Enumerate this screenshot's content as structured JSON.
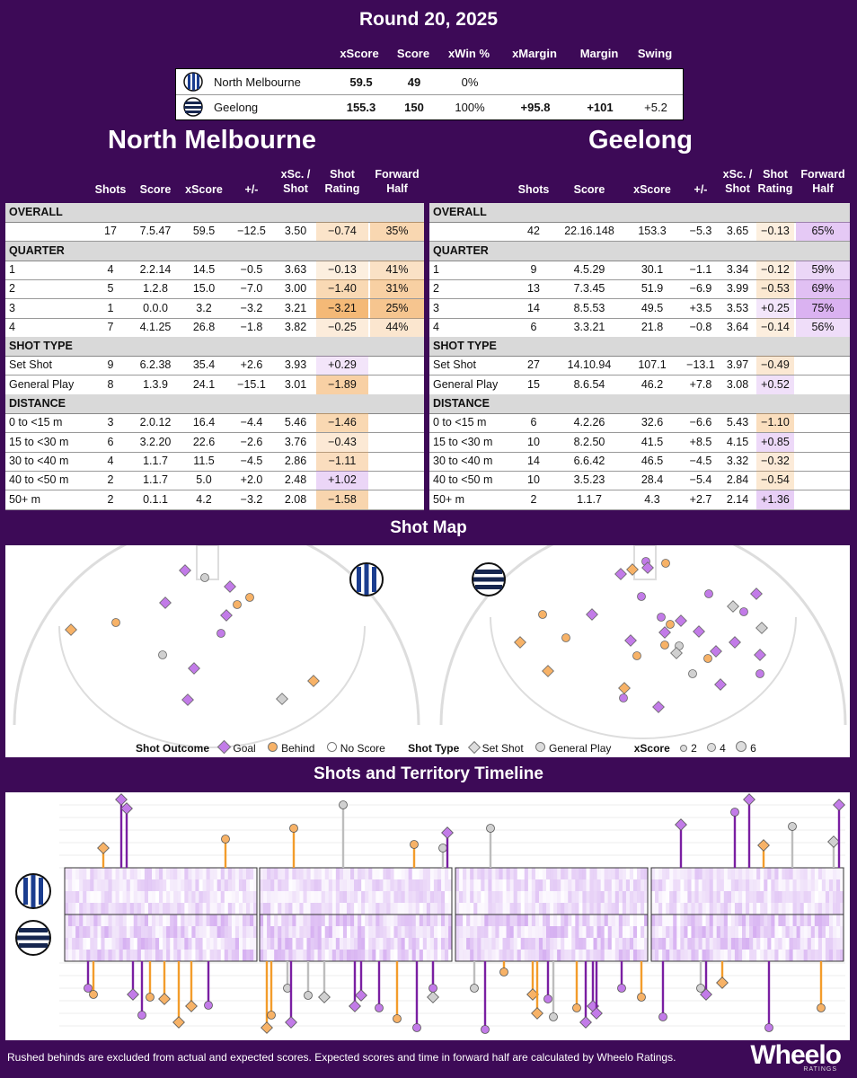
{
  "title": "Round 20, 2025",
  "summary": {
    "headers": [
      "xScore",
      "Score",
      "xWin %",
      "xMargin",
      "Margin",
      "Swing"
    ],
    "rows": [
      {
        "team": "North Melbourne",
        "xscore": "59.5",
        "score": "49",
        "xwin": "0%",
        "xmargin": "",
        "margin": "",
        "swing": ""
      },
      {
        "team": "Geelong",
        "xscore": "155.3",
        "score": "150",
        "xwin": "100%",
        "xmargin": "+95.8",
        "margin": "+101",
        "swing": "+5.2"
      }
    ]
  },
  "table_headers": [
    "Shots",
    "Score",
    "xScore",
    "+/-",
    "xSc. / Shot",
    "Shot Rating",
    "Forward Half"
  ],
  "teams": [
    {
      "name": "North Melbourne",
      "rows": [
        {
          "section": "OVERALL"
        },
        {
          "label": "",
          "v": [
            "17",
            "7.5.47",
            "59.5",
            "−12.5",
            "3.50",
            "−0.74",
            "35%"
          ]
        },
        {
          "section": "QUARTER"
        },
        {
          "label": "1",
          "v": [
            "4",
            "2.2.14",
            "14.5",
            "−0.5",
            "3.63",
            "−0.13",
            "41%"
          ]
        },
        {
          "label": "2",
          "v": [
            "5",
            "1.2.8",
            "15.0",
            "−7.0",
            "3.00",
            "−1.40",
            "31%"
          ]
        },
        {
          "label": "3",
          "v": [
            "1",
            "0.0.0",
            "3.2",
            "−3.2",
            "3.21",
            "−3.21",
            "25%"
          ]
        },
        {
          "label": "4",
          "v": [
            "7",
            "4.1.25",
            "26.8",
            "−1.8",
            "3.82",
            "−0.25",
            "44%"
          ]
        },
        {
          "section": "SHOT TYPE"
        },
        {
          "label": "Set Shot",
          "v": [
            "9",
            "6.2.38",
            "35.4",
            "+2.6",
            "3.93",
            "+0.29",
            ""
          ]
        },
        {
          "label": "General Play",
          "v": [
            "8",
            "1.3.9",
            "24.1",
            "−15.1",
            "3.01",
            "−1.89",
            ""
          ]
        },
        {
          "section": "DISTANCE"
        },
        {
          "label": "0 to <15 m",
          "v": [
            "3",
            "2.0.12",
            "16.4",
            "−4.4",
            "5.46",
            "−1.46",
            ""
          ]
        },
        {
          "label": "15 to <30 m",
          "v": [
            "6",
            "3.2.20",
            "22.6",
            "−2.6",
            "3.76",
            "−0.43",
            ""
          ]
        },
        {
          "label": "30 to <40 m",
          "v": [
            "4",
            "1.1.7",
            "11.5",
            "−4.5",
            "2.86",
            "−1.11",
            ""
          ]
        },
        {
          "label": "40 to <50 m",
          "v": [
            "2",
            "1.1.7",
            "5.0",
            "+2.0",
            "2.48",
            "+1.02",
            ""
          ]
        },
        {
          "label": "50+ m",
          "v": [
            "2",
            "0.1.1",
            "4.2",
            "−3.2",
            "2.08",
            "−1.58",
            ""
          ]
        }
      ]
    },
    {
      "name": "Geelong",
      "rows": [
        {
          "section": "OVERALL"
        },
        {
          "label": "",
          "v": [
            "42",
            "22.16.148",
            "153.3",
            "−5.3",
            "3.65",
            "−0.13",
            "65%"
          ]
        },
        {
          "section": "QUARTER"
        },
        {
          "label": "1",
          "v": [
            "9",
            "4.5.29",
            "30.1",
            "−1.1",
            "3.34",
            "−0.12",
            "59%"
          ]
        },
        {
          "label": "2",
          "v": [
            "13",
            "7.3.45",
            "51.9",
            "−6.9",
            "3.99",
            "−0.53",
            "69%"
          ]
        },
        {
          "label": "3",
          "v": [
            "14",
            "8.5.53",
            "49.5",
            "+3.5",
            "3.53",
            "+0.25",
            "75%"
          ]
        },
        {
          "label": "4",
          "v": [
            "6",
            "3.3.21",
            "21.8",
            "−0.8",
            "3.64",
            "−0.14",
            "56%"
          ]
        },
        {
          "section": "SHOT TYPE"
        },
        {
          "label": "Set Shot",
          "v": [
            "27",
            "14.10.94",
            "107.1",
            "−13.1",
            "3.97",
            "−0.49",
            ""
          ]
        },
        {
          "label": "General Play",
          "v": [
            "15",
            "8.6.54",
            "46.2",
            "+7.8",
            "3.08",
            "+0.52",
            ""
          ]
        },
        {
          "section": "DISTANCE"
        },
        {
          "label": "0 to <15 m",
          "v": [
            "6",
            "4.2.26",
            "32.6",
            "−6.6",
            "5.43",
            "−1.10",
            ""
          ]
        },
        {
          "label": "15 to <30 m",
          "v": [
            "10",
            "8.2.50",
            "41.5",
            "+8.5",
            "4.15",
            "+0.85",
            ""
          ]
        },
        {
          "label": "30 to <40 m",
          "v": [
            "14",
            "6.6.42",
            "46.5",
            "−4.5",
            "3.32",
            "−0.32",
            ""
          ]
        },
        {
          "label": "40 to <50 m",
          "v": [
            "10",
            "3.5.23",
            "28.4",
            "−5.4",
            "2.84",
            "−0.54",
            ""
          ]
        },
        {
          "label": "50+ m",
          "v": [
            "2",
            "1.1.7",
            "4.3",
            "+2.7",
            "2.14",
            "+1.36",
            ""
          ]
        }
      ]
    }
  ],
  "shot_map": {
    "title": "Shot Map",
    "legend": {
      "outcome_label": "Shot Outcome",
      "goal": "Goal",
      "behind": "Behind",
      "no_score": "No Score",
      "type_label": "Shot Type",
      "set_shot": "Set Shot",
      "general_play": "General Play",
      "xscore_label": "xScore",
      "sizes": [
        "2",
        "4",
        "6"
      ]
    }
  },
  "timeline": {
    "title": "Shots and Territory Timeline"
  },
  "colors": {
    "goal": "#c27be8",
    "behind": "#f7b267",
    "no_score": "#d0d0d0",
    "purple_bg": "#3d0a57",
    "line_goal": "#7a1fa2",
    "line_behind": "#f39c2b",
    "line_noscore": "#bdbdbd"
  },
  "footer": "Rushed behinds are excluded from actual and expected scores. Expected scores and time in forward half are calculated by Wheelo Ratings.",
  "logo": {
    "name": "Wheelo",
    "sub": "RATINGS"
  }
}
